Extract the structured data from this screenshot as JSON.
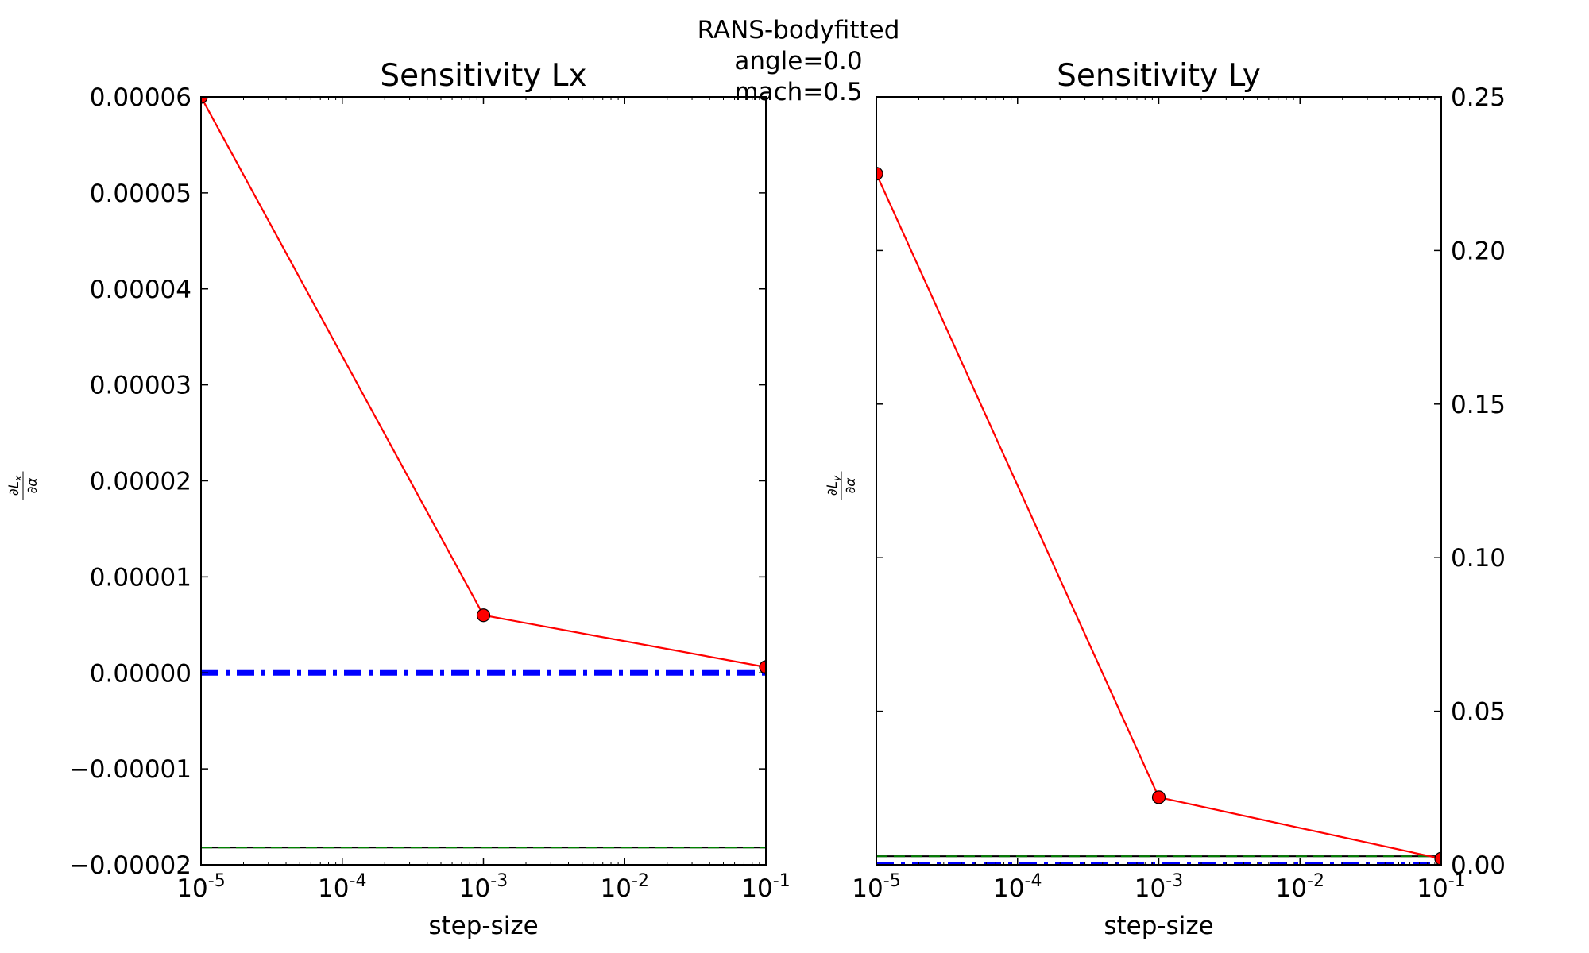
{
  "suptitle": [
    "RANS-bodyfitted",
    "angle=0.0",
    "mach=0.5"
  ],
  "chart_data": [
    {
      "type": "line",
      "title": "Sensitivity Lx",
      "xlabel": "step-size",
      "ylabel": "∂Lx/∂α",
      "xscale": "log",
      "xlim": [
        1e-05,
        0.1
      ],
      "ylim": [
        -2e-05,
        6e-05
      ],
      "xticks": [
        {
          "exp": "-5",
          "value": 1e-05
        },
        {
          "exp": "-4",
          "value": 0.0001
        },
        {
          "exp": "-3",
          "value": 0.001
        },
        {
          "exp": "-2",
          "value": 0.01
        },
        {
          "exp": "-1",
          "value": 0.1
        }
      ],
      "yticks": [
        {
          "label": "0.00006",
          "value": 6e-05
        },
        {
          "label": "0.00005",
          "value": 5e-05
        },
        {
          "label": "0.00004",
          "value": 4e-05
        },
        {
          "label": "0.00003",
          "value": 3e-05
        },
        {
          "label": "0.00002",
          "value": 2e-05
        },
        {
          "label": "0.00001",
          "value": 1e-05
        },
        {
          "label": "0.00000",
          "value": 0
        },
        {
          "label": "−0.00001",
          "value": -1e-05
        },
        {
          "label": "−0.00002",
          "value": -2e-05
        }
      ],
      "ytick_side": "left",
      "series": [
        {
          "style": "solid-markers",
          "color": "#ff0000",
          "x": [
            1e-05,
            0.001,
            0.1
          ],
          "y": [
            6e-05,
            6e-06,
            6e-07
          ]
        },
        {
          "style": "dashdot",
          "color": "#0000ff",
          "x": [
            1e-05,
            0.1
          ],
          "y": [
            0,
            0
          ]
        },
        {
          "style": "solid",
          "color": "#000000",
          "x": [
            1e-05,
            0.1
          ],
          "y": [
            -1.82e-05,
            -1.82e-05
          ]
        },
        {
          "style": "dashed",
          "color": "#008000",
          "x": [
            1e-05,
            0.1
          ],
          "y": [
            -1.82e-05,
            -1.82e-05
          ]
        }
      ]
    },
    {
      "type": "line",
      "title": "Sensitivity Ly",
      "xlabel": "step-size",
      "ylabel": "∂Ly/∂α",
      "xscale": "log",
      "xlim": [
        1e-05,
        0.1
      ],
      "ylim": [
        0,
        0.25
      ],
      "xticks": [
        {
          "exp": "-5",
          "value": 1e-05
        },
        {
          "exp": "-4",
          "value": 0.0001
        },
        {
          "exp": "-3",
          "value": 0.001
        },
        {
          "exp": "-2",
          "value": 0.01
        },
        {
          "exp": "-1",
          "value": 0.1
        }
      ],
      "yticks": [
        {
          "label": "0.25",
          "value": 0.25
        },
        {
          "label": "0.20",
          "value": 0.2
        },
        {
          "label": "0.15",
          "value": 0.15
        },
        {
          "label": "0.10",
          "value": 0.1
        },
        {
          "label": "0.05",
          "value": 0.05
        },
        {
          "label": "0.00",
          "value": 0
        }
      ],
      "ytick_side": "right",
      "series": [
        {
          "style": "solid-markers",
          "color": "#ff0000",
          "x": [
            1e-05,
            0.001,
            0.1
          ],
          "y": [
            0.225,
            0.022,
            0.002
          ]
        },
        {
          "style": "dashdot",
          "color": "#0000ff",
          "x": [
            1e-05,
            0.1
          ],
          "y": [
            0,
            0
          ]
        },
        {
          "style": "solid",
          "color": "#000000",
          "x": [
            1e-05,
            0.1
          ],
          "y": [
            0.0028,
            0.0028
          ]
        },
        {
          "style": "dashed",
          "color": "#008000",
          "x": [
            1e-05,
            0.1
          ],
          "y": [
            0.0028,
            0.0028
          ]
        }
      ]
    }
  ]
}
